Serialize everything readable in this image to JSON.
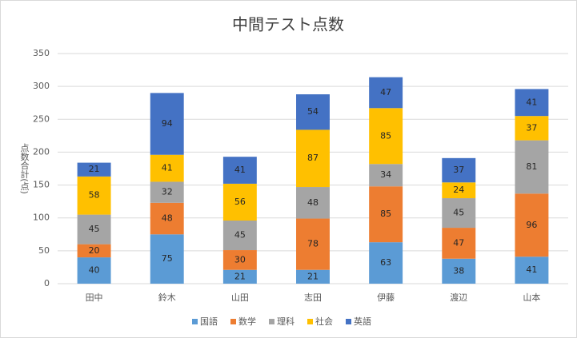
{
  "chart_data": {
    "type": "stacked_bar",
    "title": "中間テスト点数",
    "y_label": "点数合計(点)",
    "categories": [
      "田中",
      "鈴木",
      "山田",
      "志田",
      "伊藤",
      "渡辺",
      "山本"
    ],
    "series": [
      {
        "name": "国語",
        "color": "#5b9bd5",
        "values": [
          40,
          75,
          21,
          21,
          63,
          38,
          41
        ]
      },
      {
        "name": "数学",
        "color": "#ed7d31",
        "values": [
          20,
          48,
          30,
          78,
          85,
          47,
          96
        ]
      },
      {
        "name": "理科",
        "color": "#a5a5a5",
        "values": [
          45,
          32,
          45,
          48,
          34,
          45,
          81
        ]
      },
      {
        "name": "社会",
        "color": "#ffc000",
        "values": [
          58,
          41,
          56,
          87,
          85,
          24,
          37
        ]
      },
      {
        "name": "英語",
        "color": "#4472c4",
        "values": [
          21,
          94,
          41,
          54,
          47,
          37,
          41
        ]
      }
    ],
    "ylim": [
      0,
      350
    ],
    "yticks": [
      0,
      50,
      100,
      150,
      200,
      250,
      300,
      350
    ],
    "grid": true,
    "legend": "bottom"
  }
}
